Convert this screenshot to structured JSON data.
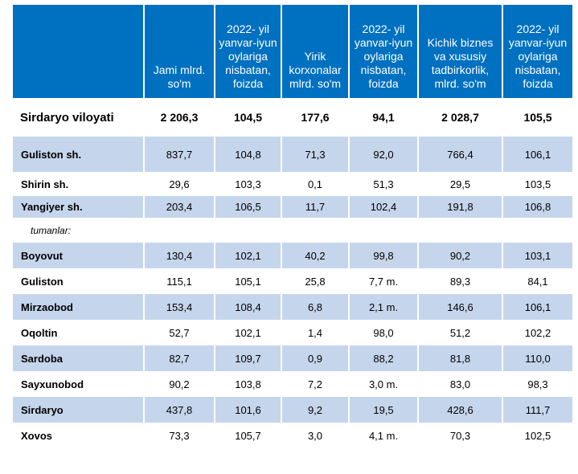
{
  "columns": [
    "",
    "Jami mlrd. so'm",
    "2022- yil yanvar-iyun oylariga nisbatan, foizda",
    "Yirik korxonalar mlrd. so'm",
    "2022- yil yanvar-iyun oylariga nisbatan, foizda",
    "Kichik biznes va xususiy tadbirkorlik, mlrd. so'm",
    "2022- yil yanvar-iyun oylariga nisbatan, foizda"
  ],
  "total": {
    "name": "Sirdaryo viloyati",
    "values": [
      "2 206,3",
      "104,5",
      "177,6",
      "94,1",
      "2 028,7",
      "105,5"
    ]
  },
  "cities": [
    {
      "name": "Guliston  sh.",
      "values": [
        "837,7",
        "104,8",
        "71,3",
        "92,0",
        "766,4",
        "106,1"
      ]
    },
    {
      "name": "Shirin sh.",
      "values": [
        "29,6",
        "103,3",
        "0,1",
        "51,3",
        "29,5",
        "103,5"
      ]
    },
    {
      "name": "Yangiyer sh.",
      "values": [
        "203,4",
        "106,5",
        "11,7",
        "102,4",
        "191,8",
        "106,8"
      ]
    }
  ],
  "subheading": "tumanlar:",
  "districts": [
    {
      "name": "Boyovut",
      "values": [
        "130,4",
        "102,1",
        "40,2",
        "99,8",
        "90,2",
        "103,1"
      ]
    },
    {
      "name": "Guliston",
      "values": [
        "115,1",
        "105,1",
        "25,8",
        "7,7 m.",
        "89,3",
        "84,1"
      ]
    },
    {
      "name": "Mirzaobod",
      "values": [
        "153,4",
        "108,4",
        "6,8",
        "2,1 m.",
        "146,6",
        "106,1"
      ]
    },
    {
      "name": "Oqoltin",
      "values": [
        "52,7",
        "102,1",
        "1,4",
        "98,0",
        "51,2",
        "102,2"
      ]
    },
    {
      "name": "Sardoba",
      "values": [
        "82,7",
        "109,7",
        "0,9",
        "88,2",
        "81,8",
        "110,0"
      ]
    },
    {
      "name": "Sayxunobod",
      "values": [
        "90,2",
        "103,8",
        "7,2",
        "3,0 m.",
        "83,0",
        "98,3"
      ]
    },
    {
      "name": "Sirdaryo",
      "values": [
        "437,8",
        "101,6",
        "9,2",
        "19,5",
        "428,6",
        "111,7"
      ]
    },
    {
      "name": "Xovos",
      "values": [
        "73,3",
        "105,7",
        "3,0",
        "4,1 m.",
        "70,3",
        "102,5"
      ]
    }
  ],
  "colors": {
    "header_bg": "#0070c0",
    "band_bg": "#c5d5ec",
    "header_text": "#ffffff"
  }
}
